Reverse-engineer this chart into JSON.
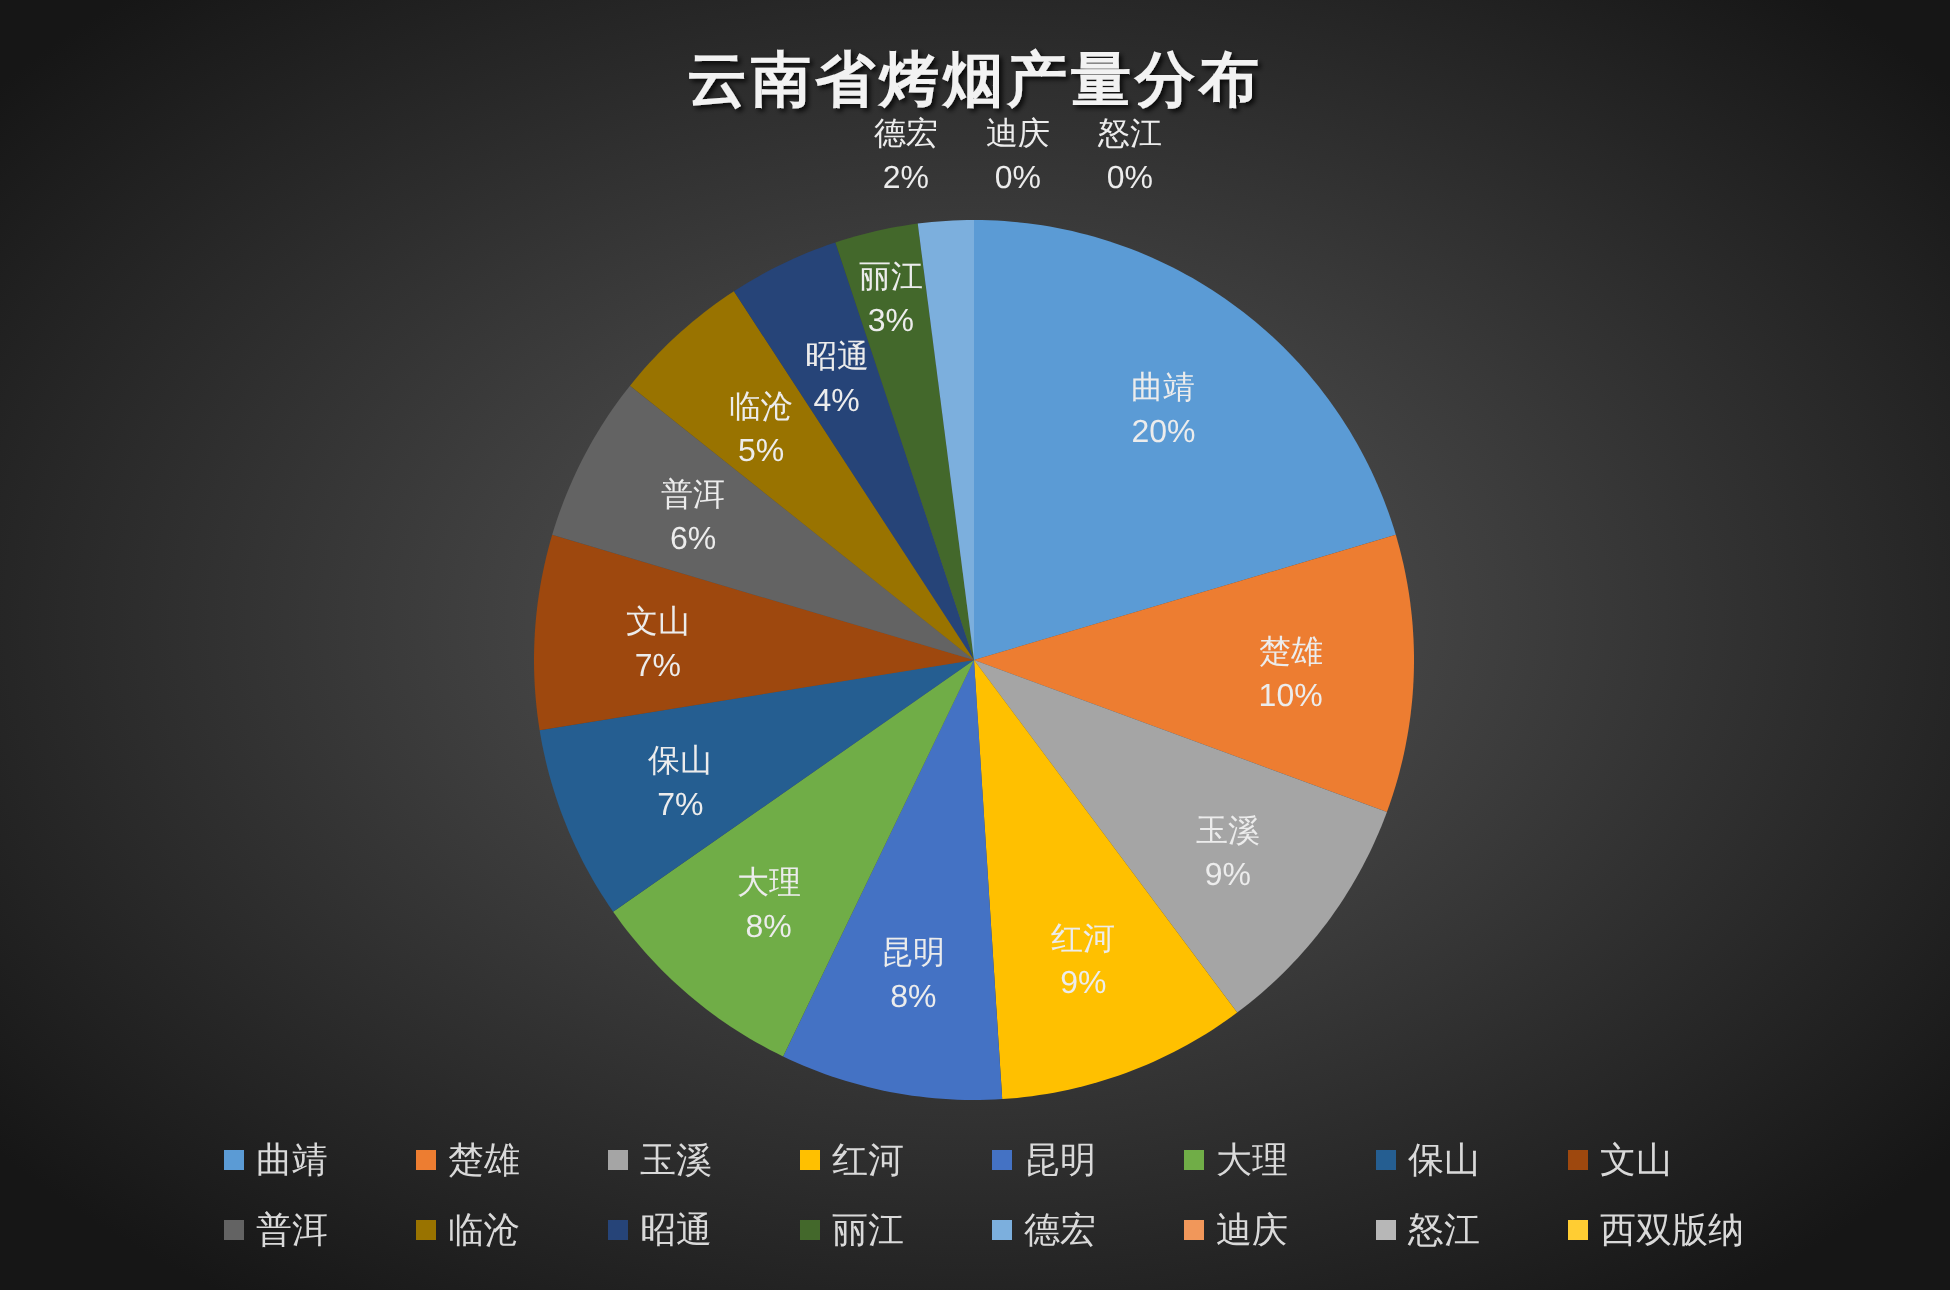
{
  "chart_data": {
    "type": "pie",
    "title": "云南省烤烟产量分布",
    "categories": [
      "曲靖",
      "楚雄",
      "玉溪",
      "红河",
      "昆明",
      "大理",
      "保山",
      "文山",
      "普洱",
      "临沧",
      "昭通",
      "丽江",
      "德宏",
      "迪庆",
      "怒江",
      "西双版纳"
    ],
    "values": [
      20,
      10,
      9,
      9,
      8,
      8,
      7,
      7,
      6,
      5,
      4,
      3,
      2,
      0,
      0,
      0
    ],
    "value_labels": [
      "20%",
      "10%",
      "9%",
      "9%",
      "8%",
      "8%",
      "7%",
      "7%",
      "6%",
      "5%",
      "4%",
      "3%",
      "2%",
      "0%",
      "0%",
      null
    ],
    "colors": [
      "#5b9bd5",
      "#ed7d31",
      "#a5a5a5",
      "#ffc000",
      "#4472c4",
      "#70ad47",
      "#255e91",
      "#9e480e",
      "#636363",
      "#997300",
      "#264478",
      "#43682b",
      "#7cafdd",
      "#f1975a",
      "#b7b7b7",
      "#ffcd33"
    ],
    "legend": "bottom"
  }
}
